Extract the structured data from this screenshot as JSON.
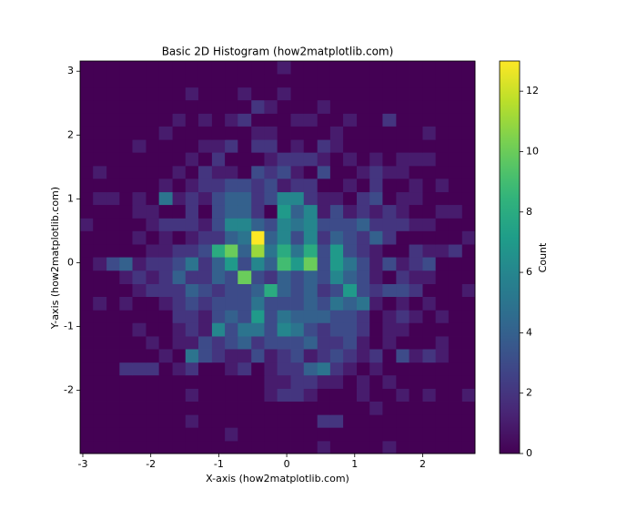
{
  "chart_data": {
    "type": "hist2d",
    "title": "Basic 2D Histogram (how2matplotlib.com)",
    "x_label": "X-axis (how2matplotlib.com)",
    "y_label": "Y-axis (how2matplotlib.com)",
    "colorbar_label": "Count",
    "colormap": "viridis",
    "xlim": [
      -3.04,
      2.77
    ],
    "ylim": [
      -2.99,
      3.16
    ],
    "xticks": [
      -3,
      -2,
      -1,
      0,
      1,
      2
    ],
    "yticks": [
      -2,
      -1,
      0,
      1,
      2,
      3
    ],
    "clim": [
      0,
      13
    ],
    "cticks": [
      0,
      2,
      4,
      6,
      8,
      10,
      12
    ],
    "xbins": [
      -3.04,
      -2.85,
      -2.65,
      -2.46,
      -2.27,
      -2.07,
      -1.88,
      -1.68,
      -1.49,
      -1.3,
      -1.1,
      -0.91,
      -0.72,
      -0.52,
      -0.33,
      -0.14,
      0.06,
      0.25,
      0.45,
      0.64,
      0.83,
      1.03,
      1.22,
      1.41,
      1.61,
      1.8,
      2.0,
      2.19,
      2.38,
      2.58,
      2.77
    ],
    "ybins": [
      -2.99,
      -2.79,
      -2.58,
      -2.38,
      -2.17,
      -1.97,
      -1.76,
      -1.56,
      -1.35,
      -1.15,
      -0.94,
      -0.74,
      -0.53,
      -0.33,
      -0.12,
      0.09,
      0.29,
      0.5,
      0.7,
      0.91,
      1.11,
      1.32,
      1.52,
      1.73,
      1.93,
      2.14,
      2.34,
      2.55,
      2.75,
      2.96,
      3.16
    ],
    "counts": [
      [
        0,
        0,
        0,
        0,
        0,
        0,
        0,
        0,
        0,
        0,
        0,
        0,
        0,
        0,
        0,
        0,
        0,
        0,
        1,
        0,
        0,
        0,
        0,
        1,
        0,
        0,
        0,
        0,
        0,
        0
      ],
      [
        0,
        0,
        0,
        0,
        0,
        0,
        0,
        0,
        0,
        0,
        0,
        1,
        0,
        0,
        0,
        0,
        0,
        0,
        0,
        0,
        0,
        0,
        0,
        0,
        0,
        0,
        0,
        0,
        0,
        0
      ],
      [
        0,
        0,
        0,
        0,
        0,
        0,
        0,
        0,
        1,
        0,
        0,
        0,
        0,
        0,
        0,
        0,
        0,
        0,
        2,
        2,
        0,
        0,
        0,
        0,
        0,
        0,
        0,
        0,
        0,
        0
      ],
      [
        0,
        0,
        0,
        0,
        0,
        0,
        0,
        0,
        0,
        0,
        0,
        0,
        0,
        0,
        0,
        0,
        0,
        0,
        0,
        0,
        0,
        0,
        1,
        0,
        0,
        0,
        0,
        0,
        0,
        0
      ],
      [
        0,
        0,
        0,
        0,
        0,
        0,
        0,
        0,
        1,
        0,
        0,
        0,
        0,
        0,
        1,
        2,
        2,
        1,
        0,
        0,
        0,
        1,
        0,
        0,
        1,
        0,
        1,
        0,
        0,
        1
      ],
      [
        0,
        0,
        0,
        0,
        0,
        0,
        0,
        0,
        0,
        0,
        0,
        0,
        0,
        0,
        1,
        1,
        2,
        2,
        1,
        1,
        0,
        1,
        0,
        1,
        0,
        0,
        0,
        0,
        0,
        0
      ],
      [
        0,
        0,
        0,
        2,
        2,
        2,
        0,
        1,
        2,
        0,
        0,
        1,
        2,
        0,
        1,
        2,
        2,
        4,
        5,
        2,
        1,
        0,
        1,
        0,
        0,
        0,
        0,
        0,
        0,
        0
      ],
      [
        0,
        0,
        0,
        0,
        0,
        0,
        1,
        0,
        5,
        3,
        2,
        1,
        1,
        3,
        1,
        2,
        3,
        1,
        2,
        3,
        2,
        1,
        2,
        0,
        3,
        1,
        2,
        1,
        0,
        0
      ],
      [
        0,
        0,
        0,
        0,
        0,
        1,
        0,
        1,
        1,
        3,
        2,
        3,
        4,
        2,
        3,
        3,
        3,
        4,
        2,
        2,
        3,
        1,
        0,
        1,
        0,
        0,
        0,
        1,
        0,
        0
      ],
      [
        0,
        0,
        0,
        0,
        1,
        0,
        0,
        1,
        2,
        1,
        6,
        3,
        5,
        5,
        3,
        6,
        5,
        3,
        2,
        3,
        3,
        2,
        0,
        1,
        1,
        0,
        0,
        0,
        0,
        0
      ],
      [
        0,
        0,
        0,
        0,
        0,
        0,
        0,
        2,
        2,
        1,
        3,
        4,
        3,
        7,
        3,
        5,
        4,
        4,
        4,
        3,
        3,
        2,
        0,
        1,
        2,
        1,
        0,
        1,
        0,
        0
      ],
      [
        0,
        1,
        0,
        1,
        0,
        0,
        1,
        2,
        3,
        2,
        3,
        3,
        3,
        5,
        3,
        3,
        3,
        4,
        3,
        5,
        4,
        5,
        1,
        0,
        1,
        0,
        1,
        0,
        0,
        0
      ],
      [
        0,
        0,
        0,
        0,
        1,
        2,
        2,
        2,
        4,
        3,
        2,
        3,
        3,
        4,
        8,
        4,
        3,
        4,
        2,
        3,
        7,
        3,
        2,
        3,
        3,
        2,
        0,
        0,
        0,
        1
      ],
      [
        0,
        0,
        0,
        1,
        2,
        1,
        2,
        4,
        2,
        2,
        4,
        3,
        10,
        3,
        2,
        4,
        3,
        4,
        3,
        6,
        4,
        3,
        1,
        0,
        2,
        1,
        1,
        0,
        0,
        0
      ],
      [
        0,
        1,
        3,
        4,
        1,
        2,
        2,
        3,
        5,
        2,
        4,
        7,
        3,
        6,
        4,
        9,
        7,
        10,
        3,
        7,
        5,
        3,
        1,
        3,
        1,
        2,
        3,
        0,
        0,
        0
      ],
      [
        0,
        0,
        0,
        0,
        0,
        1,
        1,
        2,
        2,
        3,
        8,
        10,
        4,
        11,
        5,
        8,
        5,
        8,
        3,
        7,
        3,
        2,
        1,
        0,
        0,
        2,
        1,
        1,
        2,
        0
      ],
      [
        0,
        0,
        0,
        0,
        1,
        0,
        1,
        0,
        1,
        2,
        2,
        4,
        5,
        13,
        4,
        6,
        3,
        6,
        2,
        4,
        3,
        2,
        4,
        2,
        0,
        0,
        0,
        0,
        0,
        1
      ],
      [
        1,
        0,
        0,
        0,
        0,
        1,
        2,
        2,
        2,
        1,
        3,
        6,
        6,
        4,
        3,
        6,
        5,
        6,
        3,
        3,
        3,
        4,
        2,
        2,
        2,
        1,
        1,
        0,
        0,
        0
      ],
      [
        0,
        0,
        0,
        0,
        1,
        1,
        0,
        0,
        2,
        0,
        3,
        4,
        4,
        2,
        0,
        7,
        4,
        6,
        1,
        3,
        1,
        2,
        1,
        2,
        1,
        0,
        0,
        1,
        1,
        0
      ],
      [
        0,
        1,
        1,
        0,
        1,
        0,
        5,
        1,
        2,
        1,
        3,
        4,
        4,
        2,
        3,
        6,
        6,
        2,
        1,
        1,
        0,
        2,
        3,
        0,
        1,
        1,
        0,
        0,
        0,
        0
      ],
      [
        0,
        0,
        0,
        0,
        0,
        0,
        1,
        0,
        1,
        2,
        2,
        3,
        3,
        2,
        3,
        1,
        2,
        2,
        0,
        0,
        1,
        0,
        2,
        0,
        0,
        1,
        0,
        1,
        0,
        0
      ],
      [
        0,
        1,
        0,
        0,
        0,
        0,
        0,
        1,
        0,
        2,
        1,
        1,
        0,
        3,
        2,
        3,
        1,
        0,
        3,
        0,
        0,
        1,
        2,
        1,
        1,
        0,
        0,
        0,
        0,
        0
      ],
      [
        0,
        0,
        0,
        0,
        0,
        0,
        0,
        0,
        1,
        0,
        2,
        0,
        0,
        0,
        1,
        2,
        2,
        2,
        1,
        0,
        1,
        0,
        1,
        0,
        1,
        1,
        1,
        0,
        0,
        0
      ],
      [
        0,
        0,
        0,
        0,
        1,
        0,
        0,
        0,
        0,
        1,
        1,
        2,
        0,
        2,
        2,
        0,
        1,
        0,
        2,
        1,
        0,
        0,
        0,
        0,
        0,
        0,
        0,
        0,
        0,
        0
      ],
      [
        0,
        0,
        0,
        0,
        0,
        0,
        1,
        0,
        0,
        0,
        0,
        0,
        0,
        1,
        1,
        0,
        0,
        0,
        0,
        1,
        0,
        0,
        0,
        0,
        0,
        0,
        1,
        0,
        0,
        0
      ],
      [
        0,
        0,
        0,
        0,
        0,
        0,
        0,
        1,
        0,
        1,
        0,
        1,
        2,
        0,
        0,
        0,
        1,
        1,
        0,
        0,
        1,
        0,
        0,
        2,
        0,
        0,
        0,
        0,
        0,
        0
      ],
      [
        0,
        0,
        0,
        0,
        0,
        0,
        0,
        0,
        0,
        0,
        0,
        0,
        0,
        2,
        1,
        0,
        0,
        0,
        1,
        0,
        0,
        0,
        0,
        0,
        0,
        0,
        0,
        0,
        0,
        0
      ],
      [
        0,
        0,
        0,
        0,
        0,
        0,
        0,
        0,
        1,
        0,
        0,
        0,
        1,
        0,
        0,
        1,
        0,
        0,
        0,
        0,
        0,
        0,
        0,
        0,
        0,
        0,
        0,
        0,
        0,
        0
      ],
      [
        0,
        0,
        0,
        0,
        0,
        0,
        0,
        0,
        0,
        0,
        0,
        0,
        0,
        0,
        0,
        0,
        0,
        0,
        0,
        0,
        0,
        0,
        0,
        0,
        0,
        0,
        0,
        0,
        0,
        0
      ],
      [
        0,
        0,
        0,
        0,
        0,
        0,
        0,
        0,
        0,
        0,
        0,
        0,
        0,
        0,
        0,
        1,
        0,
        0,
        0,
        0,
        0,
        0,
        0,
        0,
        0,
        0,
        0,
        0,
        0,
        0
      ]
    ]
  }
}
